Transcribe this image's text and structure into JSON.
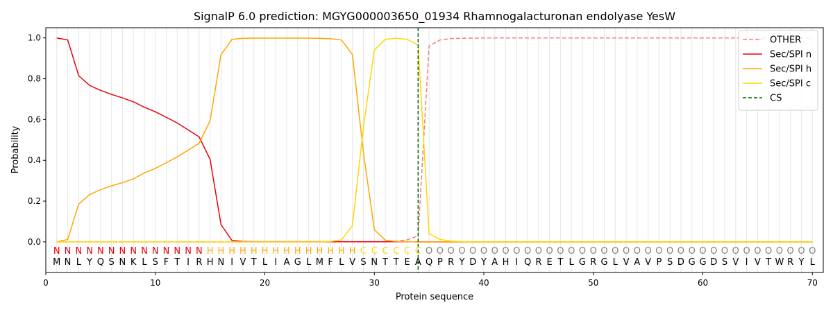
{
  "chart_data": {
    "type": "line",
    "title": "SignalP 6.0 prediction: MGYG000003650_01934 Rhamnogalacturonan endolyase YesW",
    "xlabel": "Protein sequence",
    "ylabel": "Probability",
    "xlim": [
      0,
      71
    ],
    "ylim": [
      -0.15,
      1.05
    ],
    "x_ticks": [
      0,
      10,
      20,
      30,
      40,
      50,
      60,
      70
    ],
    "y_ticks": [
      0.0,
      0.2,
      0.4,
      0.6,
      0.8,
      1.0
    ],
    "legend_position": "top-right",
    "grid": "vertical lines at each residue",
    "x": [
      1,
      2,
      3,
      4,
      5,
      6,
      7,
      8,
      9,
      10,
      11,
      12,
      13,
      14,
      15,
      16,
      17,
      18,
      19,
      20,
      21,
      22,
      23,
      24,
      25,
      26,
      27,
      28,
      29,
      30,
      31,
      32,
      33,
      34,
      35,
      36,
      37,
      38,
      39,
      40,
      41,
      42,
      43,
      44,
      45,
      46,
      47,
      48,
      49,
      50,
      51,
      52,
      53,
      54,
      55,
      56,
      57,
      58,
      59,
      60,
      61,
      62,
      63,
      64,
      65,
      66,
      67,
      68,
      69,
      70
    ],
    "series": [
      {
        "name": "OTHER",
        "color": "#f08080",
        "style": "dashed",
        "values": [
          0,
          0,
          0,
          0,
          0,
          0,
          0,
          0,
          0,
          0,
          0,
          0,
          0,
          0,
          0,
          0,
          0,
          0,
          0,
          0,
          0,
          0,
          0,
          0,
          0,
          0,
          0,
          0,
          0,
          0,
          0,
          0.003,
          0.01,
          0.03,
          0.96,
          0.99,
          0.997,
          0.998,
          0.999,
          1,
          1,
          1,
          1,
          1,
          1,
          1,
          1,
          1,
          1,
          1,
          1,
          1,
          1,
          1,
          1,
          1,
          1,
          1,
          1,
          1,
          1,
          1,
          1,
          1,
          1,
          1,
          1,
          1,
          1,
          1
        ]
      },
      {
        "name": "Sec/SPI n",
        "color": "#e8000b",
        "style": "solid",
        "values": [
          1.0,
          0.99,
          0.815,
          0.767,
          0.743,
          0.723,
          0.706,
          0.687,
          0.66,
          0.638,
          0.611,
          0.583,
          0.549,
          0.515,
          0.405,
          0.085,
          0.007,
          0.002,
          0.001,
          0.001,
          0.001,
          0.001,
          0.001,
          0.001,
          0.001,
          0.001,
          0.001,
          0.001,
          0.001,
          0.001,
          0.001,
          0.001,
          0.001,
          0,
          0,
          0,
          0,
          0,
          0,
          0,
          0,
          0,
          0,
          0,
          0,
          0,
          0,
          0,
          0,
          0,
          0,
          0,
          0,
          0,
          0,
          0,
          0,
          0,
          0,
          0,
          0,
          0,
          0,
          0,
          0,
          0,
          0,
          0,
          0,
          0
        ]
      },
      {
        "name": "Sec/SPI h",
        "color": "#ffa500",
        "style": "solid",
        "values": [
          0,
          0.012,
          0.185,
          0.232,
          0.256,
          0.275,
          0.29,
          0.309,
          0.338,
          0.36,
          0.388,
          0.417,
          0.45,
          0.483,
          0.594,
          0.918,
          0.993,
          0.998,
          0.999,
          0.999,
          0.999,
          0.999,
          0.999,
          0.999,
          0.998,
          0.996,
          0.99,
          0.918,
          0.44,
          0.06,
          0.008,
          0.002,
          0.001,
          0,
          0,
          0,
          0,
          0,
          0,
          0,
          0,
          0,
          0,
          0,
          0,
          0,
          0,
          0,
          0,
          0,
          0,
          0,
          0,
          0,
          0,
          0,
          0,
          0,
          0,
          0,
          0,
          0,
          0,
          0,
          0,
          0,
          0,
          0,
          0,
          0
        ]
      },
      {
        "name": "Sec/SPI c",
        "color": "#ffd700",
        "style": "solid",
        "values": [
          0,
          0,
          0,
          0,
          0,
          0,
          0,
          0,
          0,
          0,
          0,
          0,
          0,
          0,
          0,
          0,
          0,
          0,
          0,
          0,
          0,
          0,
          0,
          0,
          0,
          0.002,
          0.01,
          0.08,
          0.56,
          0.94,
          0.993,
          0.998,
          0.993,
          0.965,
          0.04,
          0.012,
          0.004,
          0.001,
          0,
          0,
          0,
          0,
          0,
          0,
          0,
          0,
          0,
          0,
          0,
          0,
          0,
          0,
          0,
          0,
          0,
          0,
          0,
          0,
          0,
          0,
          0,
          0,
          0,
          0,
          0,
          0,
          0,
          0,
          0,
          0
        ]
      },
      {
        "name": "CS",
        "color": "#006400",
        "style": "dashed",
        "type": "vline",
        "x": 34
      }
    ],
    "sequence": [
      "M",
      "N",
      "L",
      "Y",
      "Q",
      "S",
      "N",
      "K",
      "L",
      "S",
      "F",
      "T",
      "I",
      "R",
      "H",
      "N",
      "I",
      "V",
      "T",
      "L",
      "I",
      "A",
      "G",
      "L",
      "M",
      "F",
      "L",
      "V",
      "S",
      "N",
      "T",
      "T",
      "E",
      "A",
      "Q",
      "P",
      "R",
      "Y",
      "D",
      "Y",
      "A",
      "H",
      "I",
      "Q",
      "R",
      "E",
      "T",
      "L",
      "G",
      "R",
      "G",
      "L",
      "V",
      "A",
      "V",
      "P",
      "S",
      "D",
      "G",
      "G",
      "D",
      "S",
      "V",
      "I",
      "V",
      "T",
      "W",
      "R",
      "Y",
      "L"
    ],
    "region_labels": [
      "N",
      "N",
      "N",
      "N",
      "N",
      "N",
      "N",
      "N",
      "N",
      "N",
      "N",
      "N",
      "N",
      "N",
      "H",
      "H",
      "H",
      "H",
      "H",
      "H",
      "H",
      "H",
      "H",
      "H",
      "H",
      "H",
      "H",
      "H",
      "C",
      "C",
      "C",
      "C",
      "C",
      "C",
      "O",
      "O",
      "O",
      "O",
      "O",
      "O",
      "O",
      "O",
      "O",
      "O",
      "O",
      "O",
      "O",
      "O",
      "O",
      "O",
      "O",
      "O",
      "O",
      "O",
      "O",
      "O",
      "O",
      "O",
      "O",
      "O",
      "O",
      "O",
      "O",
      "O",
      "O",
      "O",
      "O",
      "O",
      "O",
      "O"
    ],
    "region_colors": {
      "N": "#e8000b",
      "H": "#ffa500",
      "C": "#ffd700",
      "O": "#808080"
    }
  }
}
